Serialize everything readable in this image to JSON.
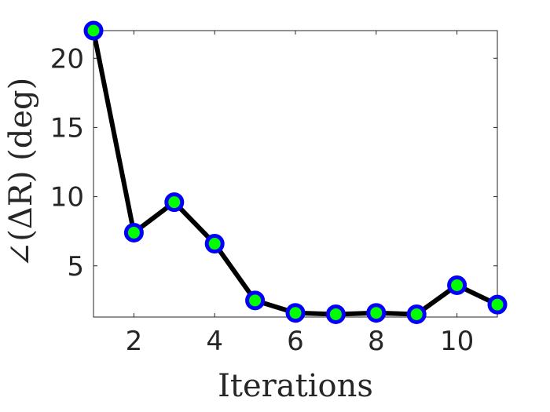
{
  "chart_data": {
    "type": "line",
    "title": "",
    "xlabel": "Iterations",
    "ylabel": "∠(ΔR) (deg)",
    "xlim": [
      1,
      11
    ],
    "ylim": [
      1.3,
      22
    ],
    "xticks": [
      2,
      4,
      6,
      8,
      10
    ],
    "yticks": [
      5,
      10,
      15,
      20
    ],
    "grid": false,
    "box": true,
    "series": [
      {
        "x": [
          1,
          2,
          3,
          4,
          5,
          6,
          7,
          8,
          9,
          10,
          11
        ],
        "y": [
          22.0,
          7.4,
          9.6,
          6.6,
          2.5,
          1.6,
          1.5,
          1.6,
          1.5,
          3.6,
          2.2
        ],
        "line_color": "#000000",
        "marker_edge_color": "#0000ff",
        "marker_face_color": "#00ff00"
      }
    ]
  }
}
